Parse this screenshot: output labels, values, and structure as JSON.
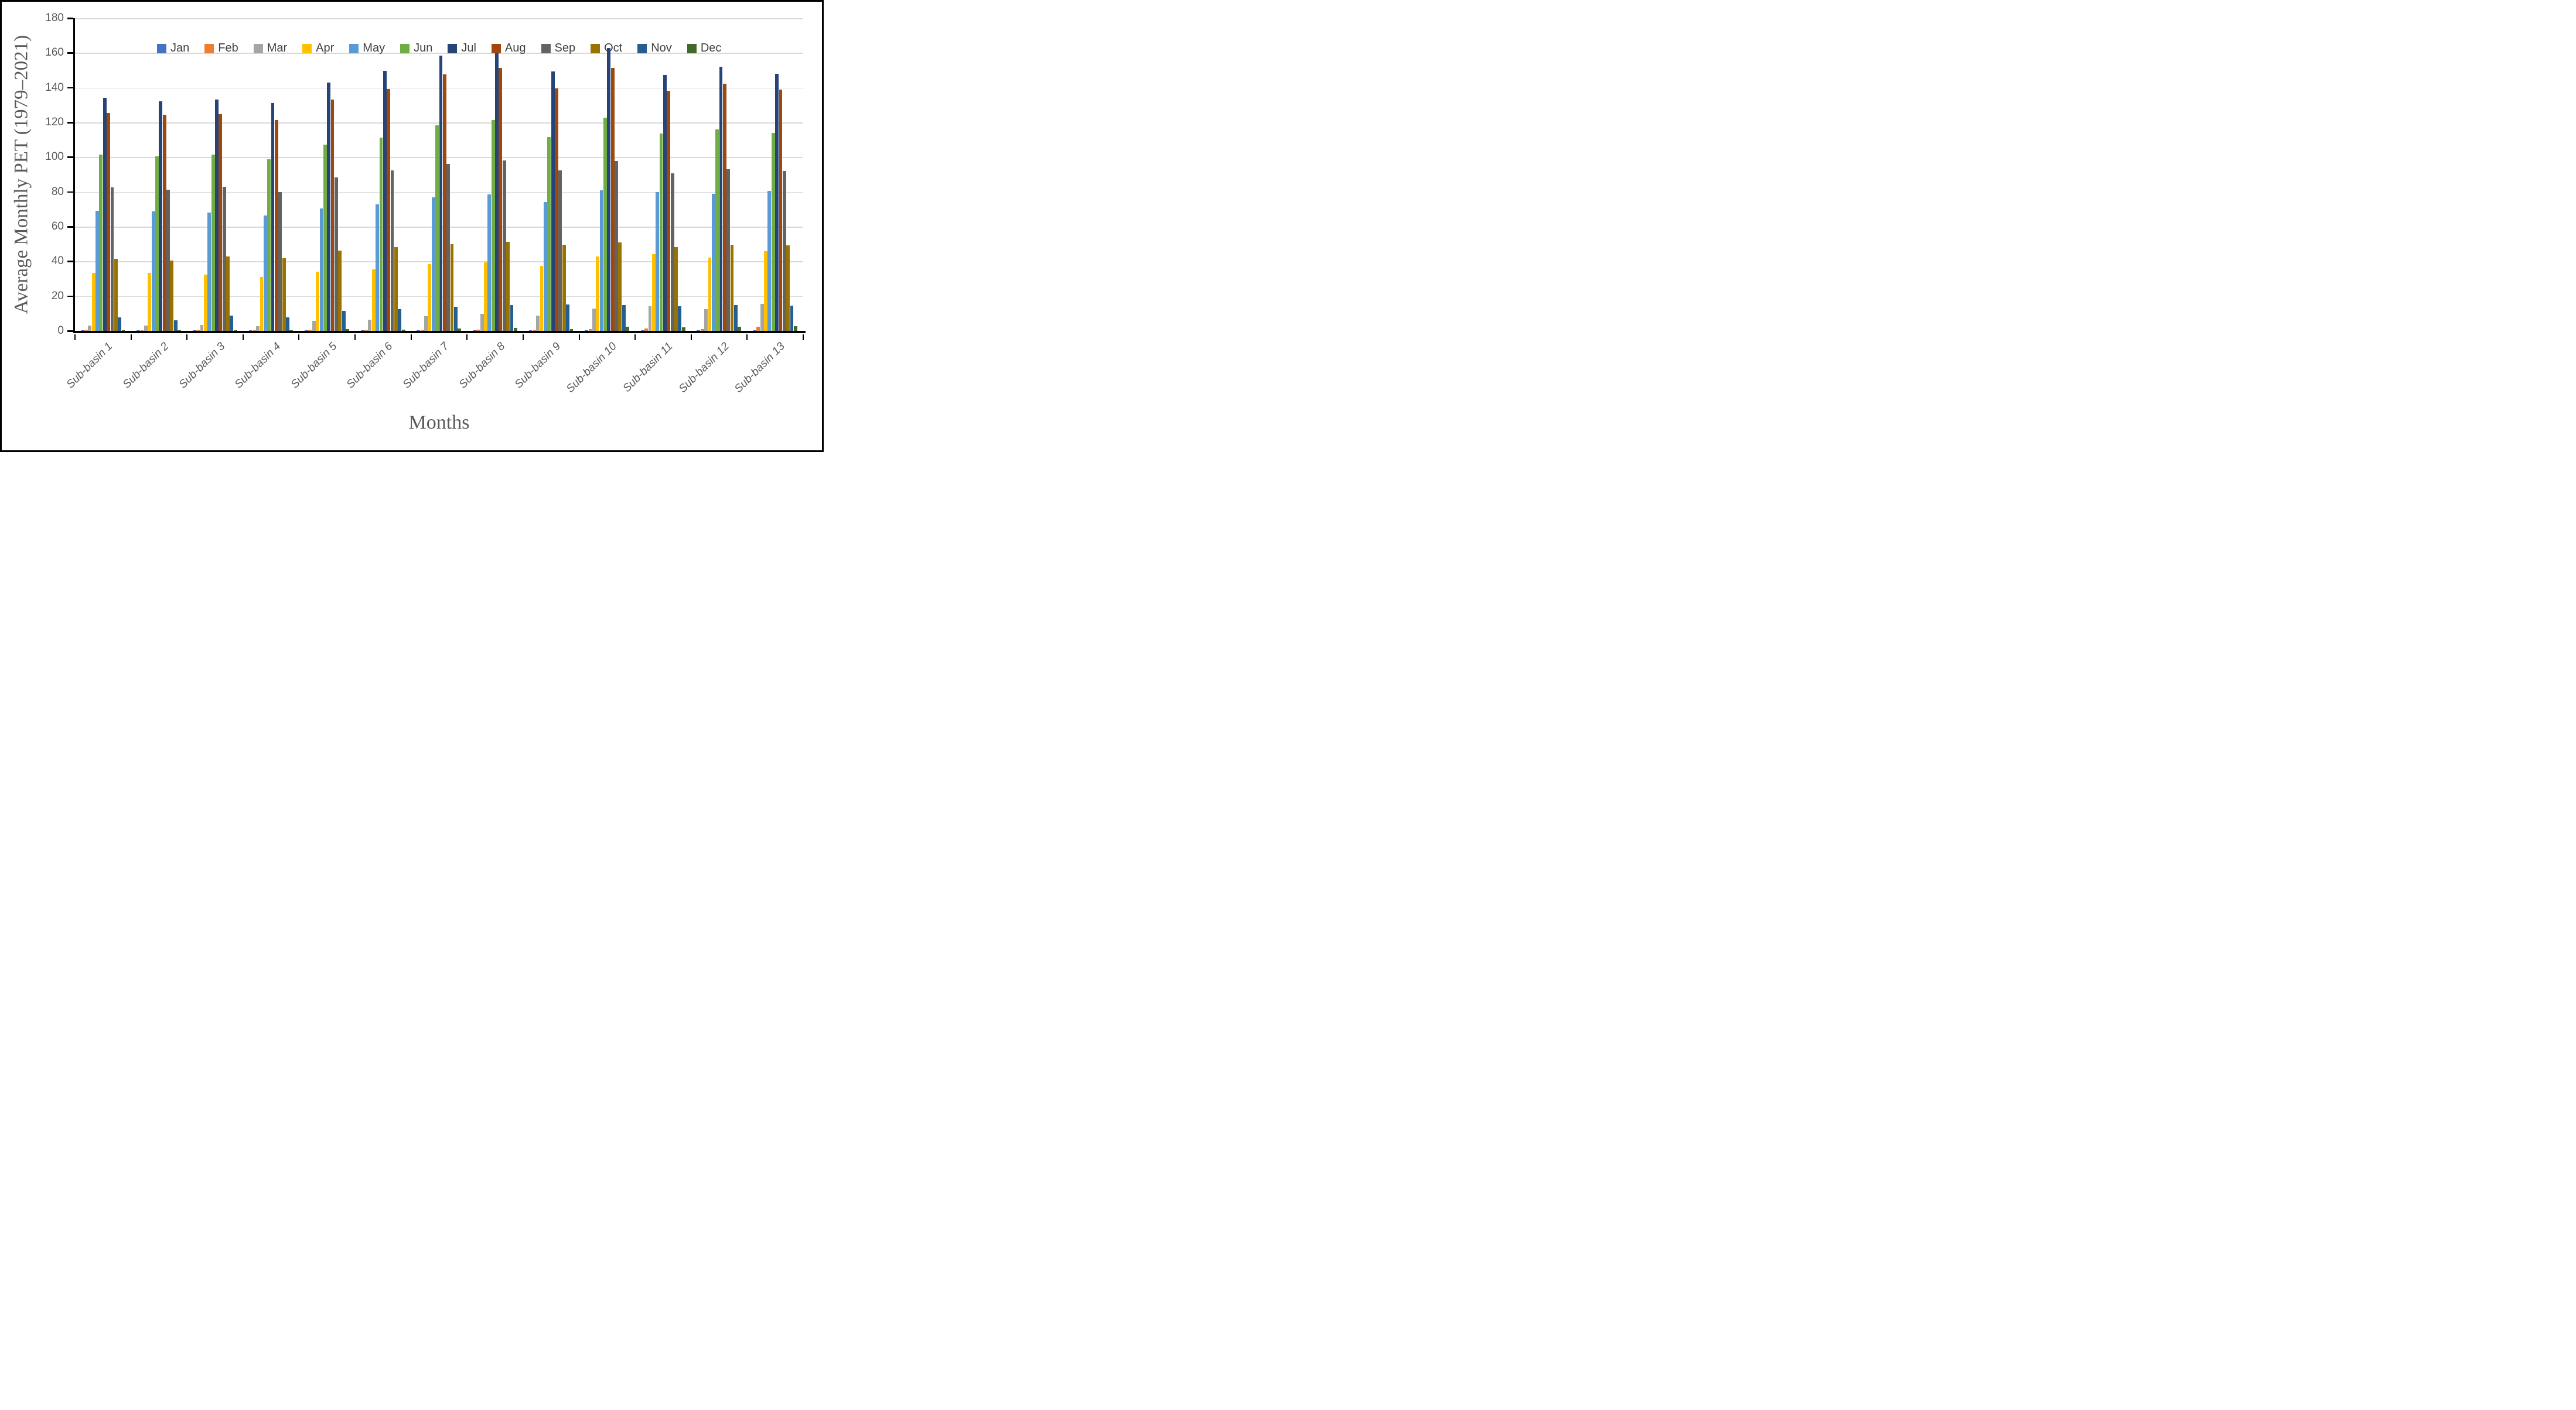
{
  "chart_data": {
    "type": "bar",
    "title": "",
    "ylabel": "Average Monthly PET (1979–2021)",
    "xlabel": "Months",
    "ylim": [
      0,
      180
    ],
    "ytick_step": 20,
    "grid": true,
    "legend_position": "top",
    "axis_color": "#000000",
    "grid_color": "#d9d9d9",
    "label_color": "#595959",
    "legend_text_color": "#404040",
    "categories": [
      "Sub-basin 1",
      "Sub-basin 2",
      "Sub-basin 3",
      "Sub-basin 4",
      "Sub-basin 5",
      "Sub-basin 6",
      "Sub-basin 7",
      "Sub-basin 8",
      "Sub-basin 9",
      "Sub-basin 10",
      "Sub-basin 11",
      "Sub-basin 12",
      "Sub-basin 13"
    ],
    "series": [
      {
        "name": "Jan",
        "color": "#4472C4",
        "values": [
          0.2,
          0.2,
          0.2,
          0.2,
          0.2,
          0.2,
          0.2,
          0.2,
          0.2,
          0.2,
          0.2,
          0.2,
          0.2
        ]
      },
      {
        "name": "Feb",
        "color": "#ED7D31",
        "values": [
          0.3,
          0.3,
          0.3,
          0.3,
          0.4,
          0.5,
          0.5,
          0.7,
          0.5,
          1.1,
          1.4,
          0.9,
          2.2
        ]
      },
      {
        "name": "Mar",
        "color": "#A5A5A5",
        "values": [
          3.0,
          2.9,
          3.3,
          2.8,
          5.6,
          6.4,
          8.6,
          9.8,
          8.8,
          12.8,
          14.1,
          12.5,
          15.5
        ]
      },
      {
        "name": "Apr",
        "color": "#FFC000",
        "values": [
          33.5,
          33.3,
          32.3,
          31.0,
          34.0,
          35.3,
          38.4,
          39.6,
          37.5,
          42.8,
          44.3,
          42.3,
          45.7
        ]
      },
      {
        "name": "May",
        "color": "#5B9BD5",
        "values": [
          69.0,
          68.8,
          68.0,
          66.5,
          70.5,
          72.9,
          76.7,
          78.5,
          74.3,
          81.0,
          79.9,
          78.8,
          80.5
        ]
      },
      {
        "name": "Jun",
        "color": "#70AD47",
        "values": [
          101.5,
          100.3,
          101.3,
          98.8,
          107.2,
          111.2,
          118.3,
          121.2,
          111.6,
          122.8,
          113.6,
          115.8,
          114.0
        ]
      },
      {
        "name": "Jul",
        "color": "#264478",
        "values": [
          134.0,
          132.0,
          133.3,
          131.0,
          142.8,
          149.5,
          158.6,
          162.5,
          149.2,
          162.8,
          147.3,
          152.0,
          147.9
        ]
      },
      {
        "name": "Aug",
        "color": "#9E480E",
        "values": [
          125.5,
          124.3,
          124.8,
          121.5,
          133.2,
          139.2,
          147.6,
          151.2,
          139.6,
          151.2,
          138.1,
          142.3,
          139.0
        ]
      },
      {
        "name": "Sep",
        "color": "#636363",
        "values": [
          82.5,
          81.3,
          82.8,
          80.0,
          88.3,
          92.3,
          96.1,
          98.1,
          92.2,
          97.6,
          90.6,
          93.0,
          92.0
        ]
      },
      {
        "name": "Oct",
        "color": "#997300",
        "values": [
          41.5,
          40.5,
          42.7,
          41.8,
          46.3,
          48.3,
          50.0,
          51.3,
          49.7,
          50.9,
          48.3,
          49.4,
          49.2
        ]
      },
      {
        "name": "Nov",
        "color": "#255E91",
        "values": [
          7.8,
          6.2,
          8.8,
          7.8,
          11.6,
          12.5,
          13.7,
          15.0,
          15.2,
          15.0,
          14.3,
          14.7,
          14.6
        ]
      },
      {
        "name": "Dec",
        "color": "#43682B",
        "values": [
          0.5,
          0.4,
          0.4,
          0.4,
          0.9,
          0.8,
          1.2,
          1.7,
          1.0,
          2.2,
          2.0,
          2.3,
          2.6
        ]
      }
    ]
  }
}
